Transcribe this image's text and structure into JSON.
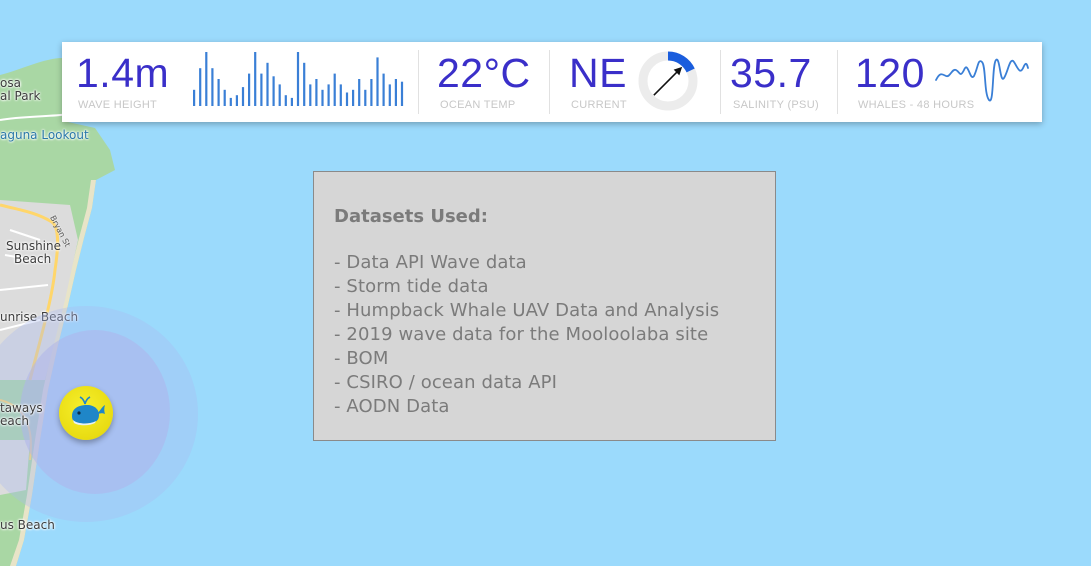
{
  "stats": {
    "wave": {
      "value": "1.4m",
      "label": "WAVE HEIGHT",
      "bars": [
        0.3,
        0.7,
        1.0,
        0.7,
        0.5,
        0.3,
        0.15,
        0.2,
        0.35,
        0.6,
        1.0,
        0.6,
        0.8,
        0.55,
        0.4,
        0.2,
        0.15,
        1.0,
        0.8,
        0.4,
        0.5,
        0.3,
        0.4,
        0.6,
        0.4,
        0.25,
        0.3,
        0.5,
        0.3,
        0.5,
        0.9,
        0.6,
        0.4,
        0.5,
        0.45
      ]
    },
    "ocean_temp": {
      "value": "22°C",
      "label": "OCEAN TEMP"
    },
    "current": {
      "value": "NE",
      "label": "CURRENT",
      "gauge_fraction": 0.18,
      "direction_degrees": 45
    },
    "salinity": {
      "value": "35.7",
      "label": "SALINITY (PSU)"
    },
    "whales": {
      "value": "120",
      "label": "WHALES - 48 HOURS"
    }
  },
  "datasets": {
    "title": "Datasets Used:",
    "items": [
      "- Data API Wave data",
      "- Storm tide data",
      "- Humpback Whale UAV Data and Analysis",
      "- 2019 wave data for the Mooloolaba site",
      "- BOM",
      "- CSIRO / ocean data API",
      "- AODN Data"
    ]
  },
  "map": {
    "labels": {
      "osa": "osa",
      "al_park": "al Park",
      "laguna": "aguna Lookout",
      "sunshine": "Sunshine",
      "sunshine_beach": "Beach",
      "bryan_st": "Bryan St",
      "sunrise": "unrise Beach",
      "castaways": "taways",
      "castaways_beach": "each",
      "marcus": "us Beach"
    }
  },
  "colors": {
    "accent": "#3a2fc9",
    "ocean": "#9bdafc",
    "gauge_fill": "#1a5ddd",
    "land": "#a8d8a0"
  }
}
